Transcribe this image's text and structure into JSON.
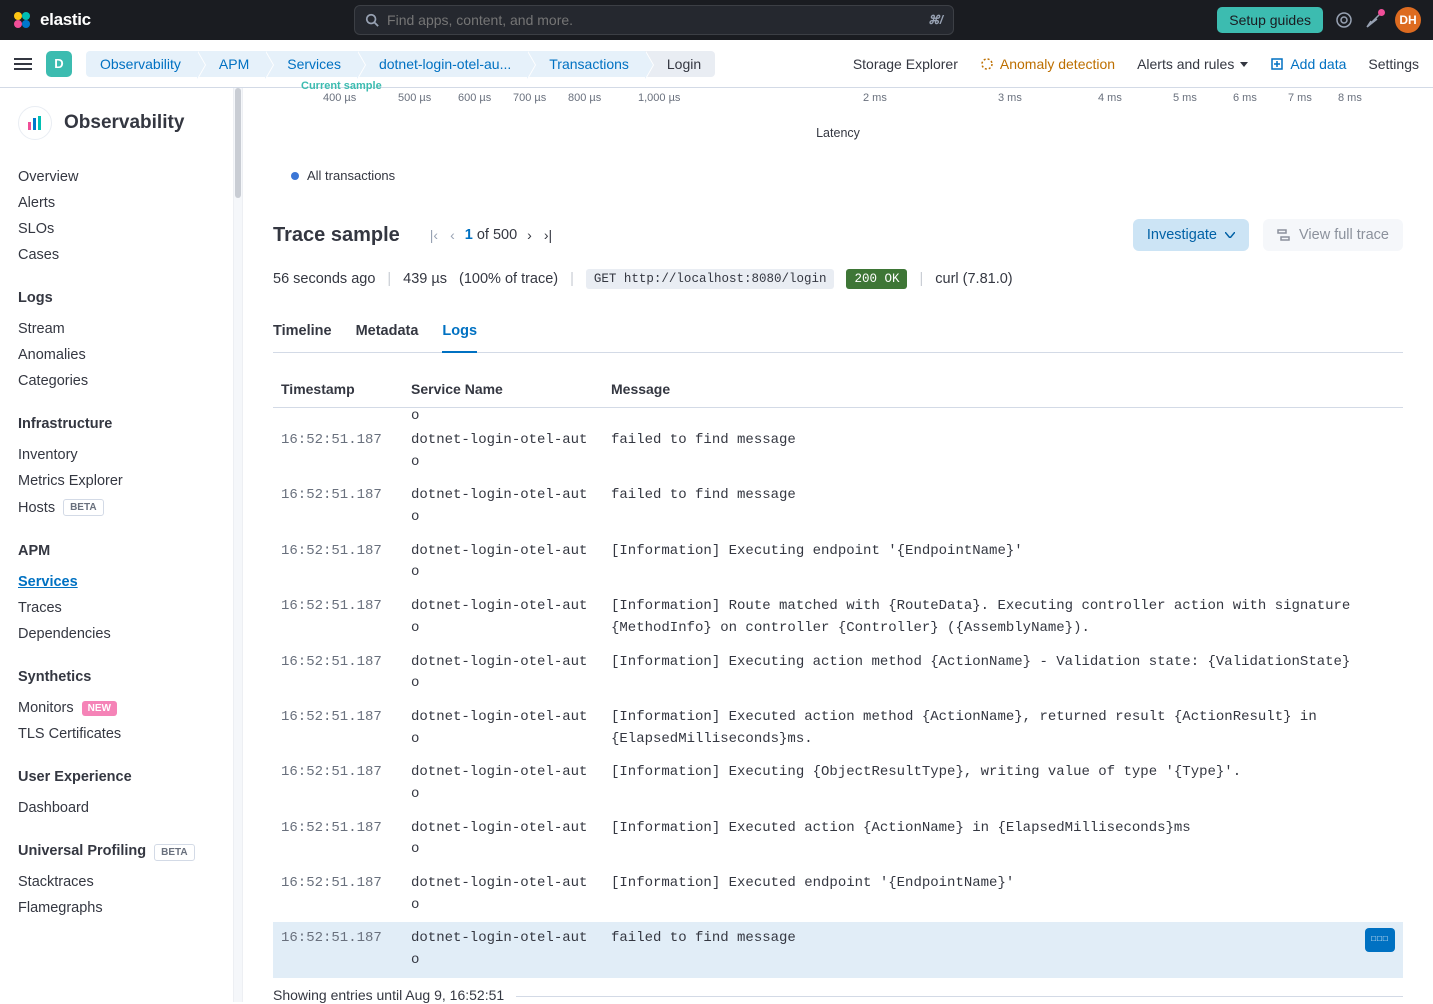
{
  "header": {
    "logo_text": "elastic",
    "search_placeholder": "Find apps, content, and more.",
    "kbd_hint": "⌘/",
    "setup_guides": "Setup guides",
    "avatar_initials": "DH"
  },
  "breadcrumbs": {
    "space_letter": "D",
    "items": [
      "Observability",
      "APM",
      "Services",
      "dotnet-login-otel-au...",
      "Transactions",
      "Login"
    ]
  },
  "subheader": {
    "storage_explorer": "Storage Explorer",
    "anomaly_detection": "Anomaly detection",
    "alerts_rules": "Alerts and rules",
    "add_data": "Add data",
    "settings": "Settings"
  },
  "sidebar": {
    "title": "Observability",
    "top_links": [
      "Overview",
      "Alerts",
      "SLOs",
      "Cases"
    ],
    "sections": [
      {
        "heading": "Logs",
        "links": [
          {
            "label": "Stream"
          },
          {
            "label": "Anomalies"
          },
          {
            "label": "Categories"
          }
        ]
      },
      {
        "heading": "Infrastructure",
        "links": [
          {
            "label": "Inventory"
          },
          {
            "label": "Metrics Explorer"
          },
          {
            "label": "Hosts",
            "badge": "BETA",
            "badge_class": "beta"
          }
        ]
      },
      {
        "heading": "APM",
        "links": [
          {
            "label": "Services",
            "active": true
          },
          {
            "label": "Traces"
          },
          {
            "label": "Dependencies"
          }
        ]
      },
      {
        "heading": "Synthetics",
        "links": [
          {
            "label": "Monitors",
            "badge": "NEW",
            "badge_class": "new"
          },
          {
            "label": "TLS Certificates"
          }
        ]
      },
      {
        "heading": "User Experience",
        "links": [
          {
            "label": "Dashboard"
          }
        ]
      },
      {
        "heading": "Universal Profiling",
        "heading_badge": "BETA",
        "links": [
          {
            "label": "Stacktraces"
          },
          {
            "label": "Flamegraphs"
          }
        ]
      }
    ]
  },
  "latency": {
    "sample_label": "Current sample",
    "ticks_us": [
      "400 µs",
      "500 µs",
      "600 µs",
      "700 µs",
      "800 µs",
      "1,000 µs"
    ],
    "ticks_ms": [
      "2 ms",
      "3 ms",
      "4 ms",
      "5 ms",
      "6 ms",
      "7 ms",
      "8 ms"
    ],
    "axis_label": "Latency",
    "legend": "All transactions"
  },
  "trace": {
    "title": "Trace sample",
    "page_current": "1",
    "page_of": "of",
    "page_total": "500",
    "investigate": "Investigate",
    "view_full": "View full trace",
    "age": "56 seconds ago",
    "duration": "439 µs",
    "pct_trace": "(100% of trace)",
    "method_pill": "GET http://localhost:8080/login",
    "status_pill": "200 OK",
    "user_agent": "curl (7.81.0)"
  },
  "tabs": {
    "items": [
      "Timeline",
      "Metadata",
      "Logs"
    ],
    "active_index": 2
  },
  "logs": {
    "columns": {
      "timestamp": "Timestamp",
      "service": "Service Name",
      "message": "Message"
    },
    "orphan_first": "o",
    "rows": [
      {
        "ts": "16:52:51.187",
        "svc": "dotnet-login-otel-auto",
        "msg": "failed to find message"
      },
      {
        "ts": "16:52:51.187",
        "svc": "dotnet-login-otel-auto",
        "msg": "failed to find message"
      },
      {
        "ts": "16:52:51.187",
        "svc": "dotnet-login-otel-auto",
        "msg": "[Information] Executing endpoint '{EndpointName}'"
      },
      {
        "ts": "16:52:51.187",
        "svc": "dotnet-login-otel-auto",
        "msg": "[Information] Route matched with {RouteData}. Executing controller action with signature {MethodInfo} on controller {Controller} ({AssemblyName})."
      },
      {
        "ts": "16:52:51.187",
        "svc": "dotnet-login-otel-auto",
        "msg": "[Information] Executing action method {ActionName} - Validation state: {ValidationState}"
      },
      {
        "ts": "16:52:51.187",
        "svc": "dotnet-login-otel-auto",
        "msg": "[Information] Executed action method {ActionName}, returned result {ActionResult} in {ElapsedMilliseconds}ms."
      },
      {
        "ts": "16:52:51.187",
        "svc": "dotnet-login-otel-auto",
        "msg": "[Information] Executing {ObjectResultType}, writing value of type '{Type}'."
      },
      {
        "ts": "16:52:51.187",
        "svc": "dotnet-login-otel-auto",
        "msg": "[Information] Executed action {ActionName} in {ElapsedMilliseconds}ms"
      },
      {
        "ts": "16:52:51.187",
        "svc": "dotnet-login-otel-auto",
        "msg": "[Information] Executed endpoint '{EndpointName}'"
      },
      {
        "ts": "16:52:51.187",
        "svc": "dotnet-login-otel-auto",
        "msg": "failed to find message",
        "highlighted": true,
        "has_menu": true
      }
    ],
    "footer": "Showing entries until Aug 9, 16:52:51"
  }
}
